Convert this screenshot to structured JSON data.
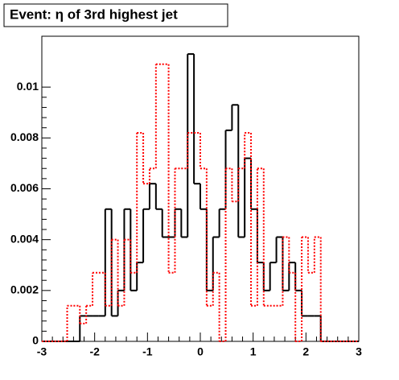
{
  "chart_data": {
    "type": "histogram",
    "title": "Event: η of 3rd highest jet",
    "bins": [
      -3,
      -2.88,
      -2.76,
      -2.64,
      -2.52,
      -2.4,
      -2.28,
      -2.16,
      -2.04,
      -1.92,
      -1.8,
      -1.68,
      -1.56,
      -1.44,
      -1.32,
      -1.2,
      -1.08,
      -0.96,
      -0.84,
      -0.72,
      -0.6,
      -0.48,
      -0.36,
      -0.24,
      -0.12,
      0,
      0.12,
      0.24,
      0.36,
      0.48,
      0.6,
      0.72,
      0.84,
      0.96,
      1.08,
      1.2,
      1.32,
      1.44,
      1.56,
      1.68,
      1.8,
      1.92,
      2.04,
      2.16,
      2.28,
      2.4,
      2.52,
      2.64,
      2.76,
      2.88,
      3
    ],
    "series": [
      {
        "color": "#000000",
        "style": "solid",
        "values": [
          0,
          0,
          0,
          0,
          0,
          0,
          0.001,
          0.001,
          0.001,
          0.001,
          0.0052,
          0.001,
          0.002,
          0.0052,
          0.002,
          0.0031,
          0.0052,
          0.0062,
          0.0052,
          0.0041,
          0.0041,
          0.0052,
          0.0041,
          0.0113,
          0.0062,
          0.0052,
          0.002,
          0.0041,
          0.0052,
          0.0083,
          0.0093,
          0.0041,
          0.0072,
          0.0052,
          0.0031,
          0.002,
          0.0031,
          0.0041,
          0.002,
          0.0031,
          0.002,
          0.001,
          0.001,
          0.001,
          0,
          0,
          0,
          0,
          0,
          0
        ]
      },
      {
        "color": "#ff0000",
        "style": "dashed",
        "values": [
          0,
          0,
          0,
          0,
          0.0014,
          0.0014,
          0.0007,
          0.0014,
          0.0027,
          0.0027,
          0.0014,
          0.004,
          0.0014,
          0.004,
          0.0027,
          0.0082,
          0.0062,
          0.0068,
          0.0109,
          0.0109,
          0.0027,
          0.0068,
          0.0068,
          0.0082,
          0.0082,
          0.0068,
          0.0014,
          0.0027,
          0,
          0.0068,
          0.0055,
          0.0068,
          0.0082,
          0.0014,
          0.0068,
          0.0014,
          0.0014,
          0.0014,
          0.0041,
          0.0027,
          0,
          0.0041,
          0.0027,
          0.0041,
          0,
          0,
          0,
          0,
          0,
          0
        ]
      }
    ],
    "xlim": [
      -3,
      3
    ],
    "xticks": [
      -3,
      -2,
      -1,
      0,
      1,
      2,
      3
    ],
    "ylim": [
      0,
      0.012
    ],
    "yticks": [
      0,
      0.002,
      0.004,
      0.006,
      0.008,
      0.01
    ]
  }
}
